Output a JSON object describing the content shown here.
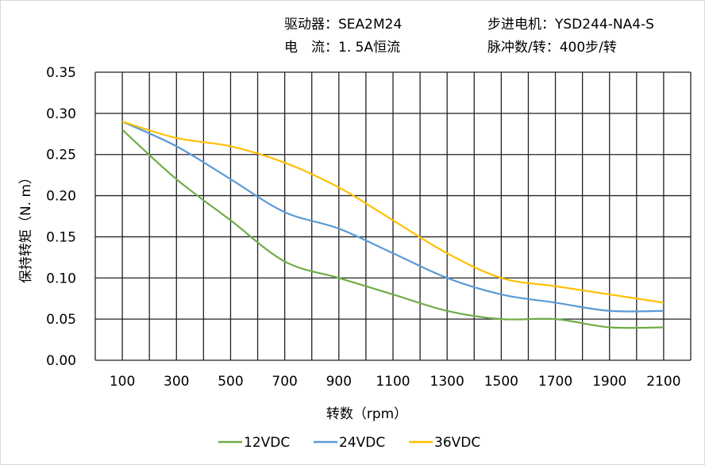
{
  "header": {
    "driver": "驱动器：SEA2M24",
    "motor": "步进电机：YSD244-NA4-S",
    "current": "电　流：1. 5A恒流",
    "pulses": "脉冲数/转：400步/转"
  },
  "chart_data": {
    "type": "line",
    "title": "",
    "xlabel": "转数（rpm）",
    "ylabel": "保持转矩（N. m）",
    "x": [
      100,
      300,
      500,
      700,
      900,
      1100,
      1300,
      1500,
      1700,
      1900,
      2100
    ],
    "xlim": [
      0,
      2200
    ],
    "ylim": [
      0,
      0.35
    ],
    "xticks": [
      "100",
      "300",
      "500",
      "700",
      "900",
      "1100",
      "1300",
      "1500",
      "1700",
      "1900",
      "2100"
    ],
    "yticks": [
      "0.00",
      "0.05",
      "0.10",
      "0.15",
      "0.20",
      "0.25",
      "0.30",
      "0.35"
    ],
    "grid": true,
    "legend": "bottom",
    "series": [
      {
        "name": "12VDC",
        "color": "#70ad47",
        "values": [
          0.28,
          0.22,
          0.17,
          0.12,
          0.1,
          0.08,
          0.06,
          0.05,
          0.05,
          0.04,
          0.04
        ]
      },
      {
        "name": "24VDC",
        "color": "#5b9bd5",
        "values": [
          0.29,
          0.26,
          0.22,
          0.18,
          0.16,
          0.13,
          0.1,
          0.08,
          0.07,
          0.06,
          0.06
        ]
      },
      {
        "name": "36VDC",
        "color": "#ffc000",
        "values": [
          0.29,
          0.27,
          0.26,
          0.24,
          0.21,
          0.17,
          0.13,
          0.1,
          0.09,
          0.08,
          0.07
        ]
      }
    ]
  }
}
